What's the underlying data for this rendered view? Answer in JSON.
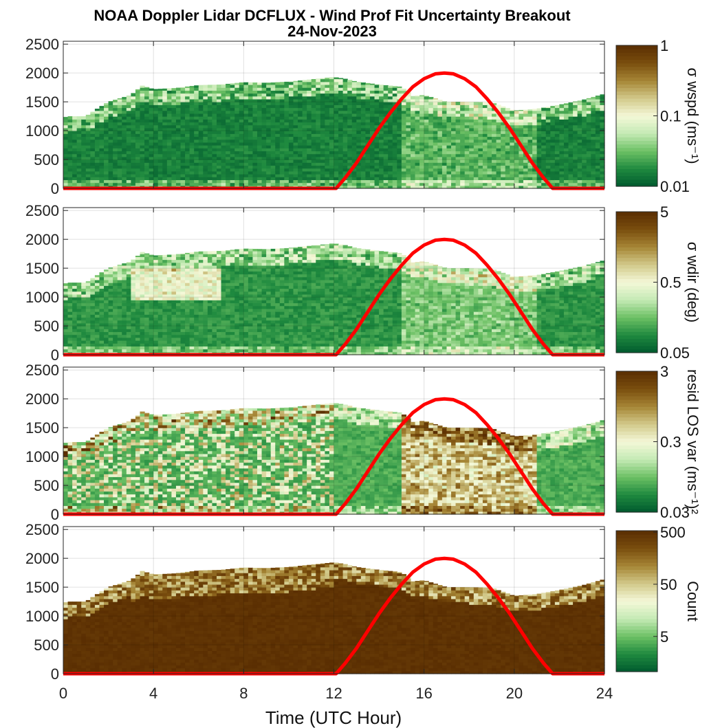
{
  "chart_data": {
    "type": "heatmap",
    "title": "NOAA Doppler Lidar DCFLUX - Wind Prof Fit Uncertainty Breakout",
    "subtitle": "24-Nov-2023",
    "xlabel": "Time (UTC Hour)",
    "xlim": [
      0,
      24
    ],
    "x_ticks": [
      "0",
      "4",
      "8",
      "12",
      "16",
      "20",
      "24"
    ],
    "x_tick_values": [
      0,
      4,
      8,
      12,
      16,
      20,
      24
    ],
    "ylim": [
      0,
      2550
    ],
    "y_ticks": [
      "0",
      "500",
      "1000",
      "1500",
      "2000",
      "2500"
    ],
    "y_tick_values": [
      0,
      500,
      1000,
      1500,
      2000,
      2500
    ],
    "grid": true,
    "boundary_layer_top": {
      "hours": [
        0,
        0.25,
        1,
        1.5,
        2,
        3,
        3.5,
        4,
        5,
        6,
        7,
        8,
        9,
        10,
        11,
        12,
        12.5,
        13,
        14,
        15,
        15.5,
        16,
        17,
        18,
        19,
        20,
        21,
        22,
        23,
        24
      ],
      "heights": [
        1230,
        1250,
        1250,
        1380,
        1500,
        1620,
        1780,
        1720,
        1740,
        1790,
        1800,
        1840,
        1830,
        1850,
        1890,
        1930,
        1900,
        1850,
        1800,
        1760,
        1600,
        1620,
        1500,
        1500,
        1490,
        1350,
        1380,
        1450,
        1530,
        1640
      ]
    },
    "sun_elevation_curve": {
      "hours": [
        0,
        12.1,
        12.5,
        13,
        13.5,
        14,
        14.5,
        15,
        15.5,
        16,
        16.5,
        16.9,
        17.3,
        17.8,
        18.3,
        18.8,
        19.3,
        19.8,
        20.3,
        20.8,
        21.3,
        21.7,
        24
      ],
      "values": [
        0,
        0,
        180,
        440,
        740,
        1040,
        1310,
        1550,
        1760,
        1900,
        1985,
        2000,
        1985,
        1900,
        1760,
        1550,
        1310,
        1040,
        740,
        440,
        180,
        0,
        0
      ],
      "color": "#ff0000"
    },
    "panels": [
      {
        "colorbar_label": "σ wspd (ms⁻¹)",
        "colorbar_ticks": [
          "0.01",
          "0.1",
          "1"
        ],
        "log_scale": true,
        "background_level": 0.05,
        "max_level": 1.0
      },
      {
        "colorbar_label": "σ wdir (deg)",
        "colorbar_ticks": [
          "0.05",
          "0.5",
          "5"
        ],
        "log_scale": true,
        "background_level": 0.1,
        "max_level": 1.0
      },
      {
        "colorbar_label": "resid LOS var (ms⁻¹)²",
        "colorbar_ticks": [
          "0.03",
          "0.3",
          "3"
        ],
        "log_scale": true,
        "background_level": 0.15,
        "max_level": 1.0
      },
      {
        "colorbar_label": "Count",
        "colorbar_ticks": [
          "5",
          "50",
          "500"
        ],
        "log_scale": true,
        "background_level": 0.98,
        "max_level": 1.0
      }
    ],
    "colormap": [
      "#00592e",
      "#1f8a3f",
      "#6cc064",
      "#c4eab4",
      "#f4f8d8",
      "#d2c98a",
      "#a68636",
      "#7a4e0e",
      "#5a2e02"
    ]
  }
}
